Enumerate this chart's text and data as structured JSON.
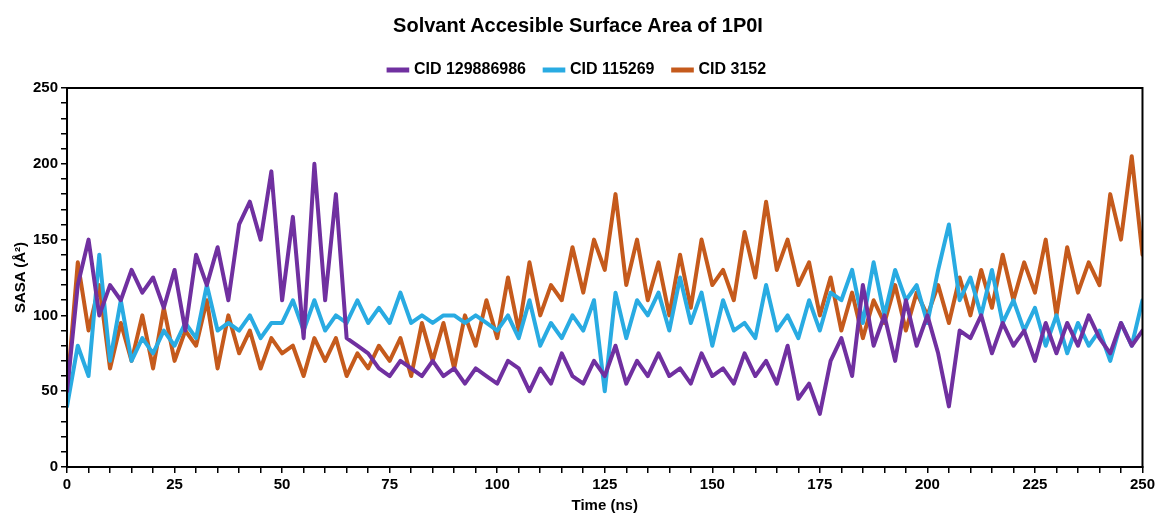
{
  "chart_data": {
    "type": "line",
    "title": "Solvant Accesible Surface Area of 1P0I",
    "xlabel": "Time (ns)",
    "ylabel": "SASA (Å²)",
    "legend": "top",
    "grid": false,
    "marker": "none",
    "line_style": "solid",
    "xlim": [
      0,
      250
    ],
    "ylim": [
      0,
      250
    ],
    "xticks": [
      0,
      {
        "value": 5,
        "label": null
      },
      {
        "value": 10,
        "label": null
      },
      {
        "value": 15,
        "label": null
      },
      {
        "value": 20,
        "label": null
      },
      25,
      {
        "value": 30,
        "label": null
      },
      {
        "value": 35,
        "label": null
      },
      {
        "value": 40,
        "label": null
      },
      {
        "value": 45,
        "label": null
      },
      50,
      {
        "value": 55,
        "label": null
      },
      {
        "value": 60,
        "label": null
      },
      {
        "value": 65,
        "label": null
      },
      {
        "value": 70,
        "label": null
      },
      75,
      {
        "value": 80,
        "label": null
      },
      {
        "value": 85,
        "label": null
      },
      {
        "value": 90,
        "label": null
      },
      {
        "value": 95,
        "label": null
      },
      100,
      {
        "value": 105,
        "label": null
      },
      {
        "value": 110,
        "label": null
      },
      {
        "value": 115,
        "label": null
      },
      {
        "value": 120,
        "label": null
      },
      125,
      {
        "value": 130,
        "label": null
      },
      {
        "value": 135,
        "label": null
      },
      {
        "value": 140,
        "label": null
      },
      {
        "value": 145,
        "label": null
      },
      150,
      {
        "value": 155,
        "label": null
      },
      {
        "value": 160,
        "label": null
      },
      {
        "value": 165,
        "label": null
      },
      {
        "value": 170,
        "label": null
      },
      175,
      {
        "value": 180,
        "label": null
      },
      {
        "value": 185,
        "label": null
      },
      {
        "value": 190,
        "label": null
      },
      {
        "value": 195,
        "label": null
      },
      200,
      {
        "value": 205,
        "label": null
      },
      {
        "value": 210,
        "label": null
      },
      {
        "value": 215,
        "label": null
      },
      {
        "value": 220,
        "label": null
      },
      225,
      {
        "value": 230,
        "label": null
      },
      {
        "value": 235,
        "label": null
      },
      {
        "value": 240,
        "label": null
      },
      {
        "value": 245,
        "label": null
      },
      250
    ],
    "yticks": [
      0,
      {
        "value": 10,
        "label": null
      },
      {
        "value": 20,
        "label": null
      },
      {
        "value": 30,
        "label": null
      },
      {
        "value": 40,
        "label": null
      },
      50,
      {
        "value": 60,
        "label": null
      },
      {
        "value": 70,
        "label": null
      },
      {
        "value": 80,
        "label": null
      },
      {
        "value": 90,
        "label": null
      },
      100,
      {
        "value": 110,
        "label": null
      },
      {
        "value": 120,
        "label": null
      },
      {
        "value": 130,
        "label": null
      },
      {
        "value": 140,
        "label": null
      },
      150,
      {
        "value": 160,
        "label": null
      },
      {
        "value": 170,
        "label": null
      },
      {
        "value": 180,
        "label": null
      },
      {
        "value": 190,
        "label": null
      },
      200,
      {
        "value": 210,
        "label": null
      },
      {
        "value": 220,
        "label": null
      },
      {
        "value": 230,
        "label": null
      },
      {
        "value": 240,
        "label": null
      },
      250
    ],
    "x": [
      0,
      2.5,
      5,
      7.5,
      10,
      12.5,
      15,
      17.5,
      20,
      22.5,
      25,
      27.5,
      30,
      32.5,
      35,
      37.5,
      40,
      42.5,
      45,
      47.5,
      50,
      52.5,
      55,
      57.5,
      60,
      62.5,
      65,
      67.5,
      70,
      72.5,
      75,
      77.5,
      80,
      82.5,
      85,
      87.5,
      90,
      92.5,
      95,
      97.5,
      100,
      102.5,
      105,
      107.5,
      110,
      112.5,
      115,
      117.5,
      120,
      122.5,
      125,
      127.5,
      130,
      132.5,
      135,
      137.5,
      140,
      142.5,
      145,
      147.5,
      150,
      152.5,
      155,
      157.5,
      160,
      162.5,
      165,
      167.5,
      170,
      172.5,
      175,
      177.5,
      180,
      182.5,
      185,
      187.5,
      190,
      192.5,
      195,
      197.5,
      200,
      202.5,
      205,
      207.5,
      210,
      212.5,
      215,
      217.5,
      220,
      222.5,
      225,
      227.5,
      230,
      232.5,
      235,
      237.5,
      240,
      242.5,
      245,
      247.5,
      250
    ],
    "series": [
      {
        "name": "CID 129886986",
        "color": "#7030a0",
        "values": [
          50,
          120,
          150,
          100,
          120,
          110,
          130,
          115,
          125,
          105,
          130,
          90,
          140,
          120,
          145,
          110,
          160,
          175,
          150,
          195,
          110,
          165,
          85,
          200,
          110,
          180,
          85,
          80,
          75,
          65,
          60,
          70,
          65,
          60,
          70,
          60,
          65,
          55,
          65,
          60,
          55,
          70,
          65,
          50,
          65,
          55,
          75,
          60,
          55,
          70,
          60,
          80,
          55,
          70,
          60,
          75,
          60,
          65,
          55,
          75,
          60,
          65,
          55,
          75,
          60,
          70,
          55,
          80,
          45,
          55,
          35,
          70,
          85,
          60,
          120,
          80,
          100,
          70,
          110,
          80,
          100,
          75,
          40,
          90,
          85,
          100,
          75,
          95,
          80,
          90,
          70,
          95,
          75,
          95,
          80,
          100,
          85,
          75,
          95,
          80,
          90
        ]
      },
      {
        "name": "CID 115269",
        "color": "#29abe2",
        "values": [
          40,
          80,
          60,
          140,
          70,
          110,
          70,
          85,
          75,
          90,
          80,
          95,
          85,
          120,
          90,
          95,
          90,
          100,
          85,
          95,
          95,
          110,
          90,
          110,
          90,
          100,
          95,
          110,
          95,
          105,
          95,
          115,
          95,
          100,
          95,
          100,
          100,
          95,
          100,
          95,
          90,
          100,
          85,
          110,
          80,
          95,
          85,
          100,
          90,
          110,
          50,
          115,
          85,
          110,
          100,
          115,
          90,
          125,
          95,
          115,
          80,
          110,
          90,
          95,
          85,
          120,
          90,
          100,
          85,
          110,
          90,
          115,
          110,
          130,
          95,
          135,
          100,
          130,
          110,
          120,
          95,
          130,
          160,
          110,
          125,
          100,
          130,
          95,
          110,
          90,
          105,
          80,
          100,
          75,
          95,
          80,
          90,
          70,
          95,
          80,
          110
        ]
      },
      {
        "name": "CID 3152",
        "color": "#c55a1c",
        "values": [
          50,
          135,
          90,
          120,
          65,
          95,
          70,
          100,
          65,
          105,
          70,
          90,
          80,
          110,
          65,
          100,
          75,
          90,
          65,
          85,
          75,
          80,
          60,
          85,
          70,
          85,
          60,
          75,
          65,
          80,
          70,
          85,
          60,
          95,
          70,
          95,
          65,
          100,
          80,
          110,
          85,
          125,
          90,
          135,
          100,
          120,
          110,
          145,
          115,
          150,
          130,
          180,
          120,
          150,
          110,
          135,
          100,
          140,
          105,
          150,
          120,
          130,
          110,
          155,
          125,
          175,
          130,
          150,
          120,
          135,
          100,
          125,
          90,
          115,
          85,
          110,
          95,
          120,
          90,
          115,
          100,
          120,
          95,
          125,
          100,
          130,
          105,
          140,
          110,
          135,
          115,
          150,
          100,
          145,
          115,
          135,
          120,
          180,
          150,
          205,
          140
        ]
      }
    ]
  }
}
